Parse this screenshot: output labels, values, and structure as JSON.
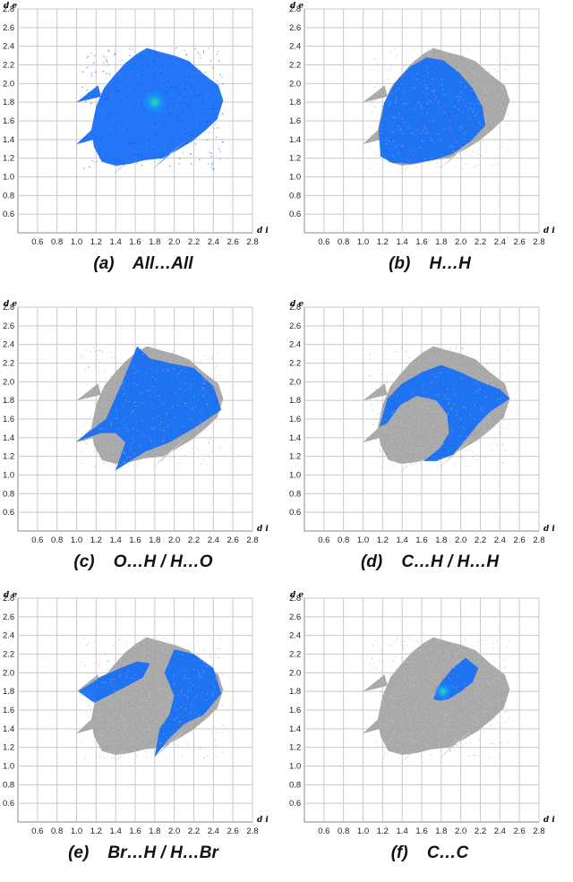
{
  "figure": {
    "x_axis_label": "d i",
    "y_axis_label": "d e",
    "x_ticks": [
      "0.6",
      "0.8",
      "1.0",
      "1.2",
      "1.4",
      "1.6",
      "1.8",
      "2.0",
      "2.2",
      "2.4",
      "2.6",
      "2.8"
    ],
    "y_ticks": [
      "2.8",
      "2.6",
      "2.4",
      "2.2",
      "2.0",
      "1.8",
      "1.6",
      "1.4",
      "1.2",
      "1.0",
      "0.8",
      "0.6"
    ],
    "colors": {
      "grid": "#c8c8c8",
      "highlight_low": "#1030e0",
      "highlight_mid": "#1a8cff",
      "highlight_high": "#20e6a0",
      "background_fingerprint": "#a8a8a8"
    }
  },
  "panels": [
    {
      "id": "a",
      "caption": "(a)    All…All"
    },
    {
      "id": "b",
      "caption": "(b)    H…H"
    },
    {
      "id": "c",
      "caption": "(c)    O…H / H…O"
    },
    {
      "id": "d",
      "caption": "(d)    C…H / H…H"
    },
    {
      "id": "e",
      "caption": "(e)    Br…H / H…Br"
    },
    {
      "id": "f",
      "caption": "(f)    C…C"
    }
  ],
  "chart_data": [
    {
      "type": "heatmap",
      "panel": "a",
      "title": "(a) All…All",
      "xlabel": "d i",
      "ylabel": "d e",
      "xlim": [
        0.4,
        2.8
      ],
      "ylim": [
        0.4,
        2.8
      ],
      "grid": true,
      "highlighted_region": {
        "di_range": [
          1.0,
          2.5
        ],
        "de_range": [
          1.05,
          2.4
        ],
        "peak": {
          "di": 1.8,
          "de": 1.8
        }
      }
    },
    {
      "type": "heatmap",
      "panel": "b",
      "title": "(b) H…H",
      "xlabel": "d i",
      "ylabel": "d e",
      "xlim": [
        0.4,
        2.8
      ],
      "ylim": [
        0.4,
        2.8
      ],
      "grid": true,
      "highlighted_region": {
        "di_range": [
          1.15,
          2.3
        ],
        "de_range": [
          1.15,
          2.3
        ],
        "peak": {
          "di": 1.4,
          "de": 1.6
        }
      }
    },
    {
      "type": "heatmap",
      "panel": "c",
      "title": "(c) O…H / H…O",
      "xlabel": "d i",
      "ylabel": "d e",
      "xlim": [
        0.4,
        2.8
      ],
      "ylim": [
        0.4,
        2.8
      ],
      "grid": true,
      "highlighted_region": {
        "di_range": [
          1.0,
          2.5
        ],
        "de_range": [
          1.05,
          2.4
        ]
      }
    },
    {
      "type": "heatmap",
      "panel": "d",
      "title": "(d) C…H / H…H",
      "xlabel": "d i",
      "ylabel": "d e",
      "xlim": [
        0.4,
        2.8
      ],
      "ylim": [
        0.4,
        2.8
      ],
      "grid": true,
      "highlighted_region": {
        "di_range": [
          1.15,
          2.5
        ],
        "de_range": [
          1.15,
          2.3
        ]
      }
    },
    {
      "type": "heatmap",
      "panel": "e",
      "title": "(e) Br…H / H…Br",
      "xlabel": "d i",
      "ylabel": "d e",
      "xlim": [
        0.4,
        2.8
      ],
      "ylim": [
        0.4,
        2.8
      ],
      "grid": true,
      "highlighted_region": {
        "di_range": [
          1.05,
          2.5
        ],
        "de_range": [
          1.1,
          2.4
        ]
      }
    },
    {
      "type": "heatmap",
      "panel": "f",
      "title": "(f) C…C",
      "xlabel": "d i",
      "ylabel": "d e",
      "xlim": [
        0.4,
        2.8
      ],
      "ylim": [
        0.4,
        2.8
      ],
      "grid": true,
      "highlighted_region": {
        "di_range": [
          1.7,
          2.2
        ],
        "de_range": [
          1.7,
          2.15
        ],
        "peak": {
          "di": 1.8,
          "de": 1.8
        }
      }
    }
  ]
}
